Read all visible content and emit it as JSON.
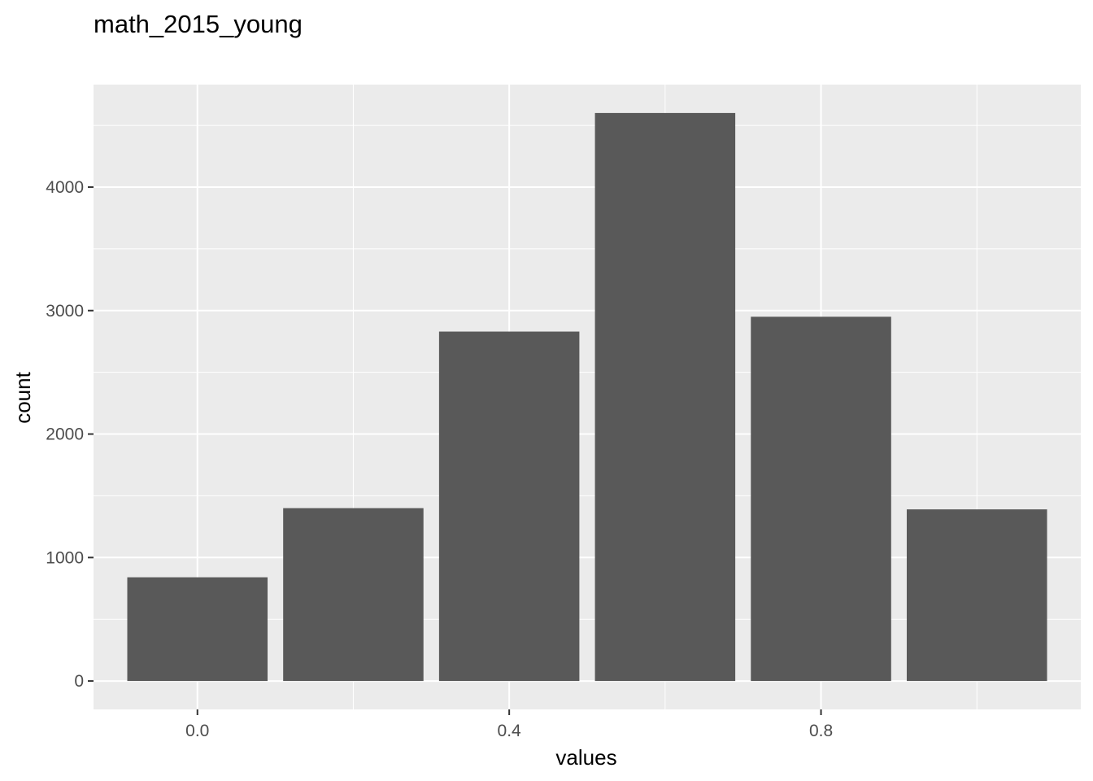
{
  "chart_data": {
    "type": "bar",
    "title": "math_2015_young",
    "xlabel": "values",
    "ylabel": "count",
    "x": [
      0.0,
      0.2,
      0.4,
      0.6,
      0.8,
      1.0
    ],
    "values": [
      840,
      1400,
      2830,
      4600,
      2950,
      1390
    ],
    "bar_width": 0.18,
    "xlim": [
      -0.1333,
      1.1333
    ],
    "ylim": [
      -230,
      4830
    ],
    "x_ticks": [
      0.0,
      0.4,
      0.8
    ],
    "x_tick_labels": [
      "0.0",
      "0.4",
      "0.8"
    ],
    "x_minor_ticks": [
      0.2,
      0.6,
      1.0
    ],
    "y_ticks": [
      0,
      1000,
      2000,
      3000,
      4000
    ],
    "y_tick_labels": [
      "0",
      "1000",
      "2000",
      "3000",
      "4000"
    ],
    "y_minor_ticks": [
      500,
      1500,
      2500,
      3500,
      4500
    ],
    "grid": true,
    "legend": "none",
    "colors": {
      "panel_background": "#ebebeb",
      "grid_line": "#ffffff",
      "bar_fill": "#595959",
      "tick_mark": "#333333",
      "tick_text": "#4d4d4d",
      "text": "#000000"
    }
  }
}
